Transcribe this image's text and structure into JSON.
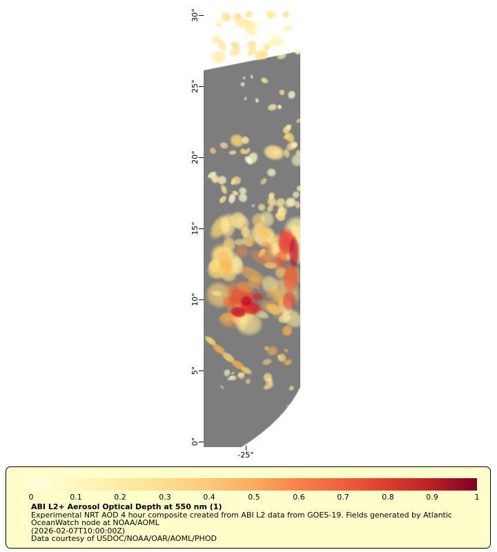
{
  "map": {
    "lat_ticks": [
      "30°",
      "25°",
      "20°",
      "15°",
      "10°",
      "5°",
      "0°"
    ],
    "lon_tick": "-25°",
    "no_data_color": "#7d7d7d",
    "background_color": "#ffffff"
  },
  "legend": {
    "background": "#ffffcc",
    "border_color": "#000000",
    "colorbar": {
      "ticks": [
        "0",
        "0.1",
        "0.2",
        "0.3",
        "0.4",
        "0.5",
        "0.6",
        "0.7",
        "0.8",
        "0.9",
        "1"
      ],
      "stops": [
        "#ffffe0",
        "#fff7bd",
        "#feeca7",
        "#fede8d",
        "#fdc87a",
        "#fcaa5f",
        "#f8814c",
        "#ef5f3c",
        "#dc3d2d",
        "#b82025",
        "#800026"
      ]
    },
    "title": "ABI L2+ Aerosol Optical Depth at 550 nm (1)",
    "description_line1": "Experimental NRT AOD 4 hour composite created from ABI L2 data from GOES-19. Fields generated by Atlantic",
    "description_line2": "OceanWatch node at NOAA/AOML",
    "timestamp": "(2026-02-07T10:00:00Z)",
    "credit": "Data courtesy of USDOC/NOAA/OAR/AOML/PHOD"
  }
}
